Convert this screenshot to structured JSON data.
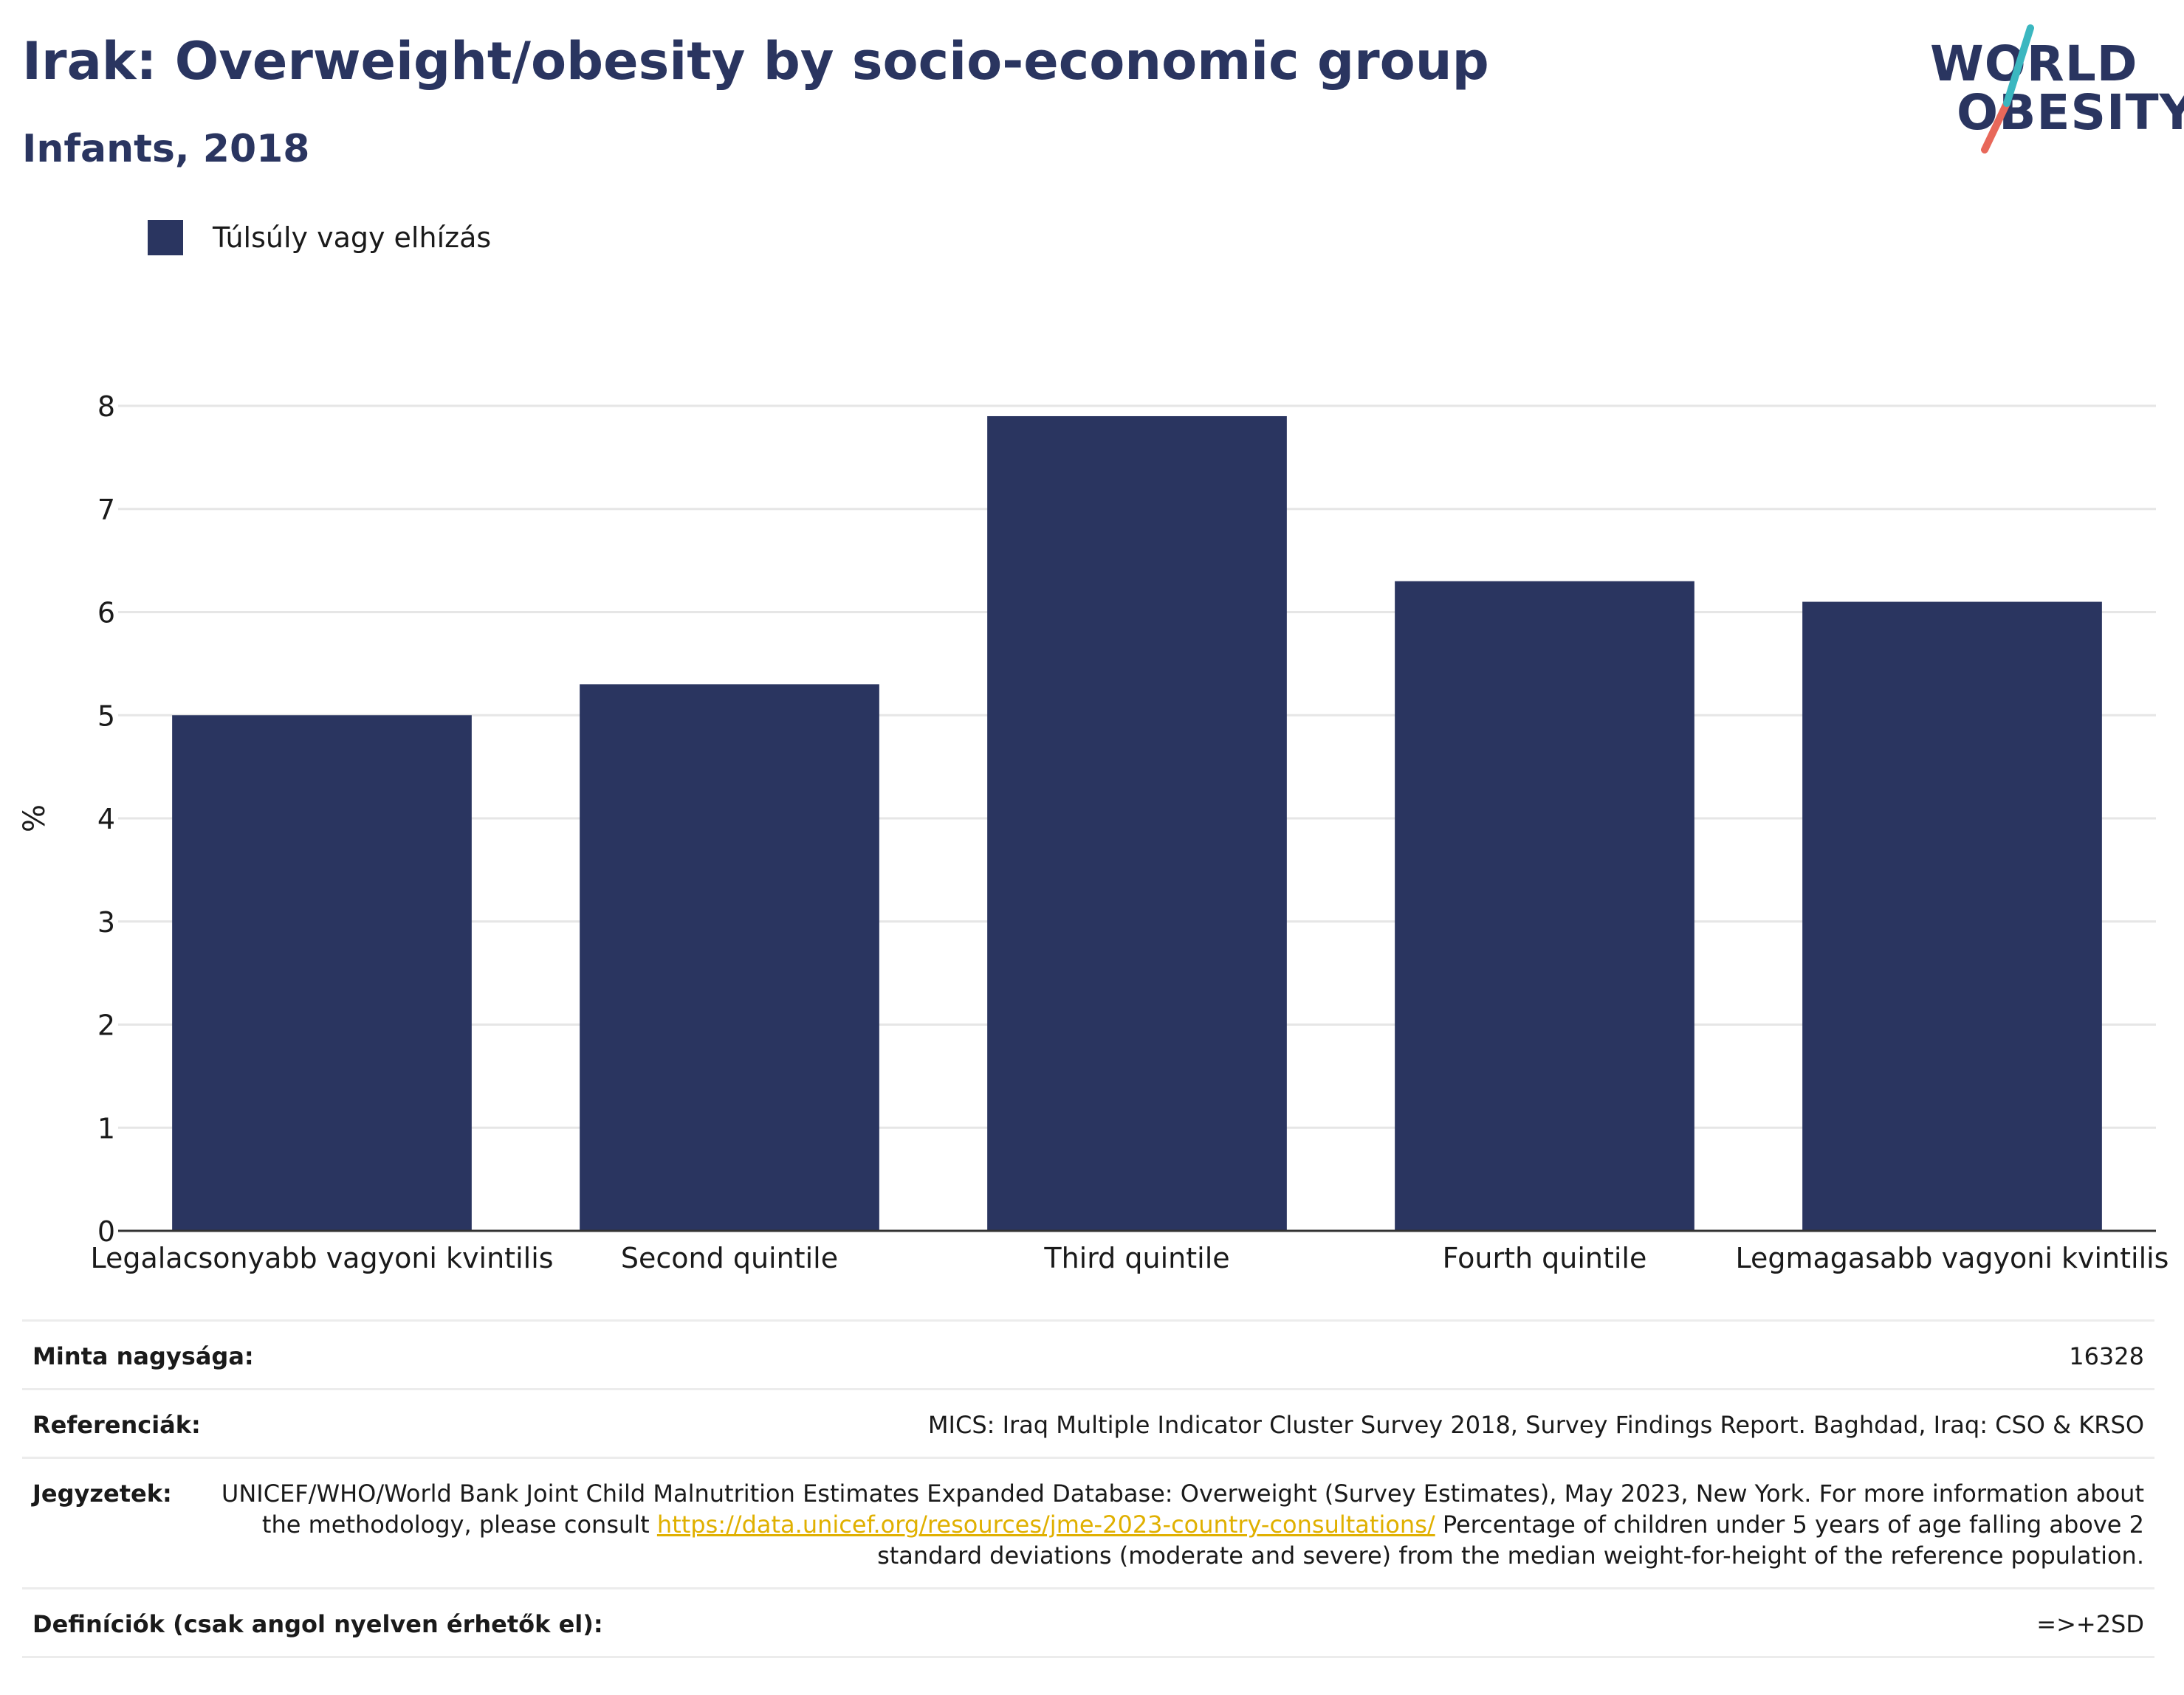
{
  "header": {
    "title": "Irak: Overweight/obesity by socio-economic group",
    "subtitle": "Infants, 2018"
  },
  "logo": {
    "line1": "WORLD",
    "line2": "OBESITY",
    "accent_teal": "#3bb7c0",
    "accent_coral": "#e8685a"
  },
  "legend": {
    "label": "Túlsúly vagy elhízás",
    "color": "#2a3560"
  },
  "chart_data": {
    "type": "bar",
    "categories": [
      "Legalacsonyabb vagyoni kvintilis",
      "Second quintile",
      "Third quintile",
      "Fourth quintile",
      "Legmagasabb vagyoni kvintilis"
    ],
    "series": [
      {
        "name": "Túlsúly vagy elhízás",
        "values": [
          5.0,
          5.3,
          7.9,
          6.3,
          6.1
        ],
        "color": "#2a3560"
      }
    ],
    "ylabel": "%",
    "xlabel": "",
    "ylim": [
      0,
      8
    ],
    "yticks": [
      0,
      1,
      2,
      3,
      4,
      5,
      6,
      7,
      8
    ],
    "grid": true,
    "legend_position": "top-left"
  },
  "meta": {
    "sample_key": "Minta nagysága:",
    "sample_val": "16328",
    "ref_key": "Referenciák:",
    "ref_val": "MICS: Iraq Multiple Indicator Cluster Survey 2018, Survey Findings Report. Baghdad, Iraq: CSO & KRSO",
    "notes_key": "Jegyzetek:",
    "notes_val_1": "UNICEF/WHO/World Bank Joint Child Malnutrition Estimates Expanded Database: Overweight (Survey Estimates), May 2023, New York. For more information about the methodology, please consult",
    "notes_link": "https://data.unicef.org/resources/jme-2023-country-consultations/",
    "notes_val_2": "Percentage of children under 5 years of age falling above 2 standard deviations (moderate and severe) from the median weight-for-height of the reference population.",
    "def_key": "Definíciók (csak angol nyelven érhetők el):",
    "def_val": "=>+2SD"
  }
}
